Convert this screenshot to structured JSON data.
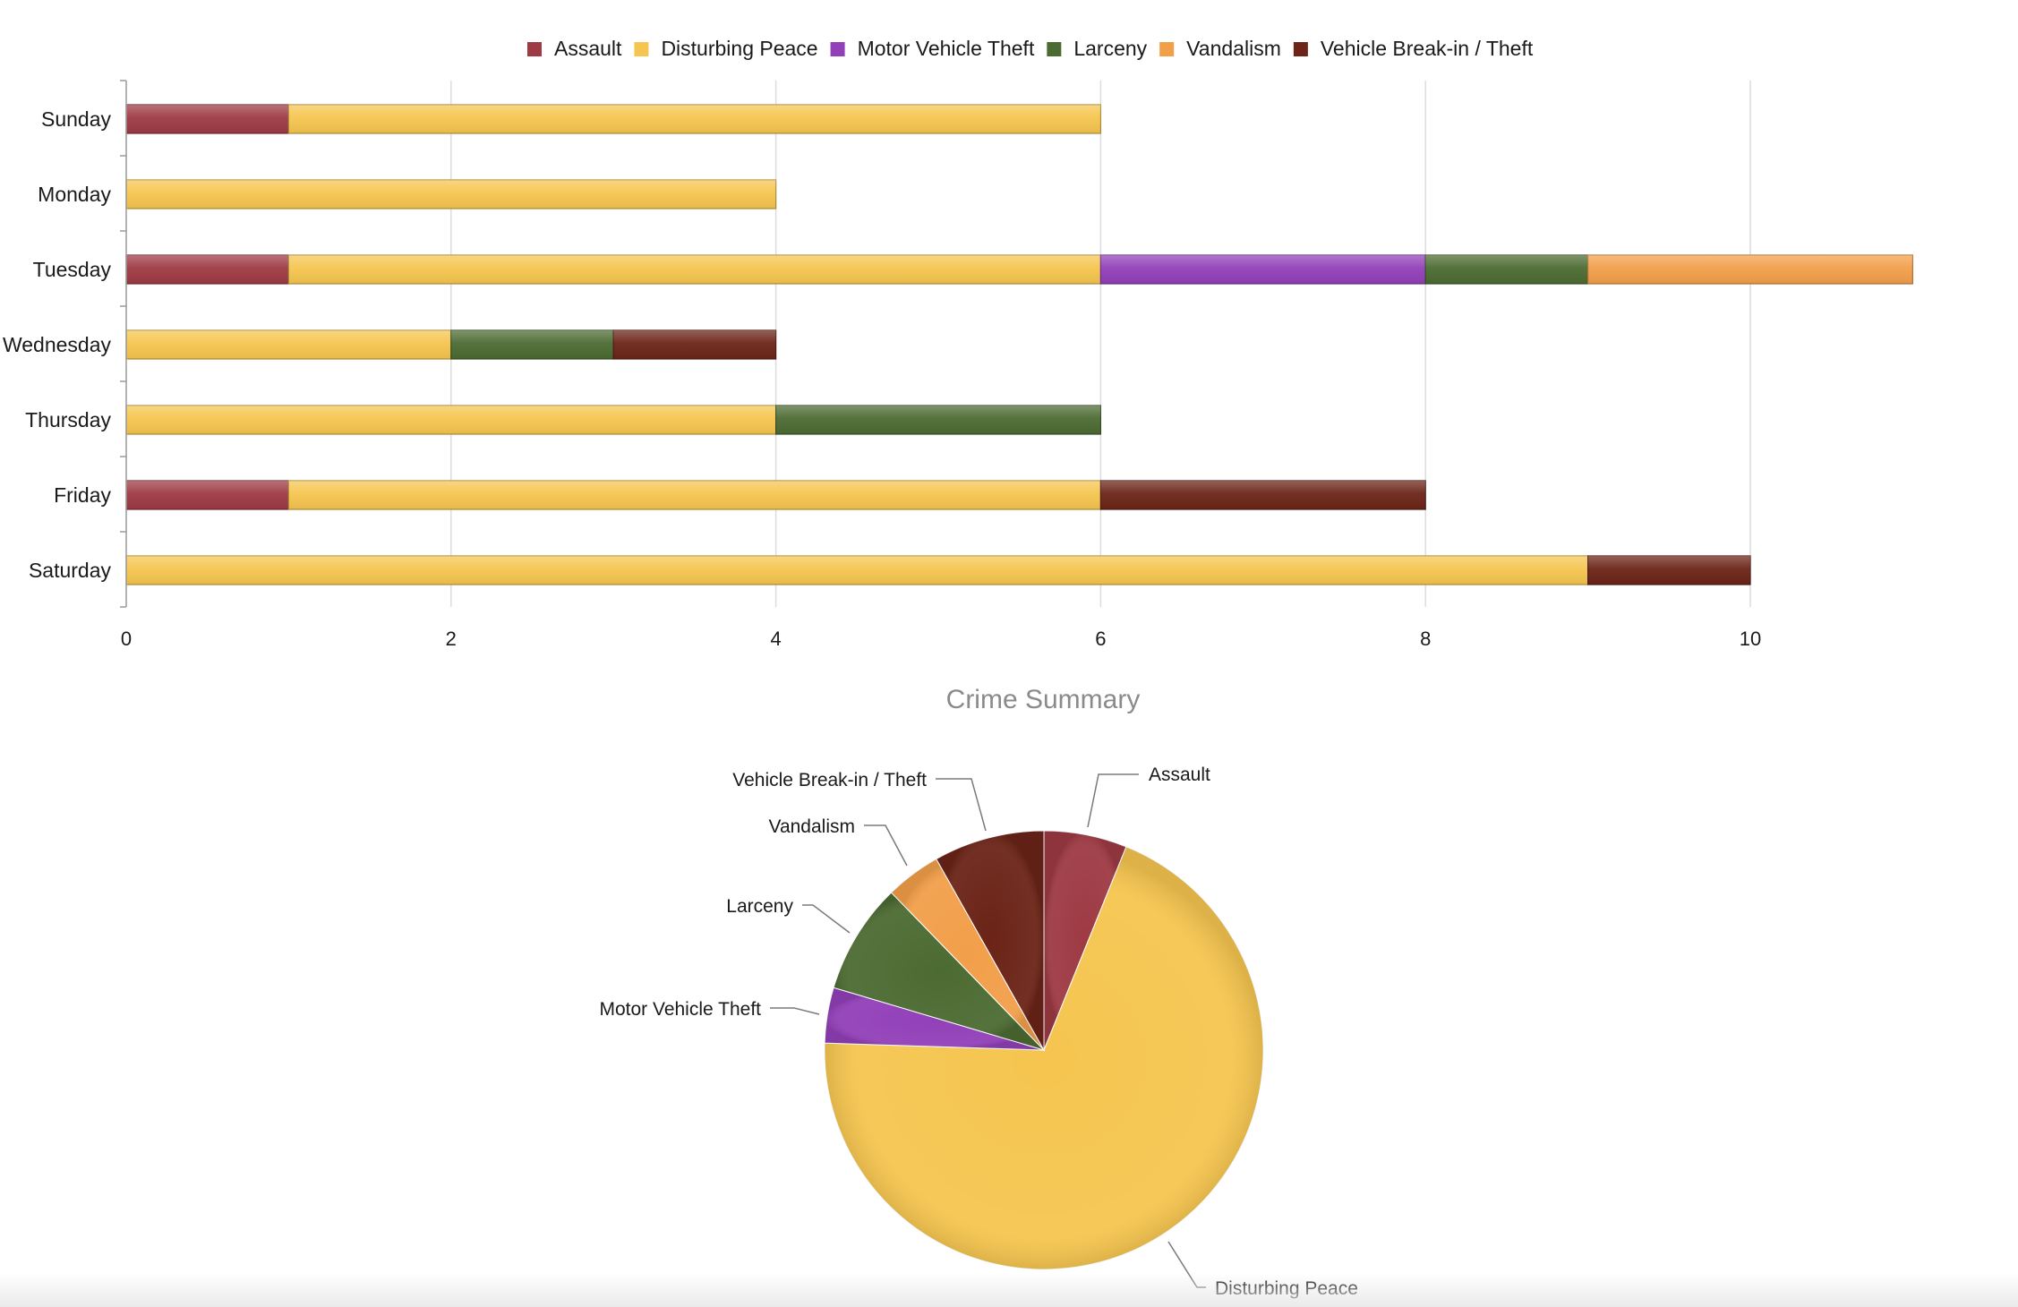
{
  "colors": {
    "Assault": "#9e3a44",
    "Disturbing Peace": "#f5c54f",
    "Motor Vehicle Theft": "#9240b8",
    "Larceny": "#4c6b32",
    "Vandalism": "#f29f4a",
    "Vehicle Break-in / Theft": "#6b2417"
  },
  "chart_data": [
    {
      "type": "bar",
      "orientation": "horizontal",
      "stacked": true,
      "title": "",
      "legend_position": "top",
      "categories": [
        "Sunday",
        "Monday",
        "Tuesday",
        "Wednesday",
        "Thursday",
        "Friday",
        "Saturday"
      ],
      "series": [
        {
          "name": "Assault",
          "values": [
            1,
            0,
            1,
            0,
            0,
            1,
            0
          ]
        },
        {
          "name": "Disturbing Peace",
          "values": [
            5,
            4,
            5,
            2,
            4,
            5,
            9
          ]
        },
        {
          "name": "Motor Vehicle Theft",
          "values": [
            0,
            0,
            2,
            0,
            0,
            0,
            0
          ]
        },
        {
          "name": "Larceny",
          "values": [
            0,
            0,
            1,
            1,
            2,
            0,
            0
          ]
        },
        {
          "name": "Vandalism",
          "values": [
            0,
            0,
            2,
            0,
            0,
            0,
            0
          ]
        },
        {
          "name": "Vehicle Break-in / Theft",
          "values": [
            0,
            0,
            0,
            1,
            0,
            2,
            1
          ]
        }
      ],
      "xlim": [
        0,
        11
      ],
      "x_ticks": [
        "0",
        "2",
        "4",
        "6",
        "8",
        "10"
      ],
      "grid": true
    },
    {
      "type": "pie",
      "title": "Crime Summary",
      "slices": [
        {
          "label": "Assault",
          "value": 3
        },
        {
          "label": "Disturbing Peace",
          "value": 34
        },
        {
          "label": "Motor Vehicle Theft",
          "value": 2
        },
        {
          "label": "Larceny",
          "value": 4
        },
        {
          "label": "Vandalism",
          "value": 2
        },
        {
          "label": "Vehicle Break-in / Theft",
          "value": 4
        }
      ]
    }
  ]
}
